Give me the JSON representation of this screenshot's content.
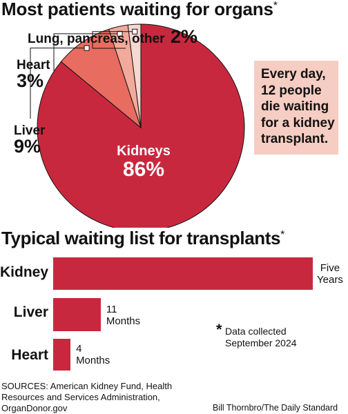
{
  "pie_chart": {
    "title": "Most patients waiting for organs",
    "title_mark": "*",
    "callout_lines": [
      "Every day,",
      "12 people",
      "die waiting",
      "for a kidney",
      "transplant."
    ]
  },
  "bar_chart": {
    "title": "Typical waiting list for transplants",
    "title_mark": "*"
  },
  "footnote": {
    "mark": "*",
    "lines": [
      "Data collected",
      "September 2024"
    ]
  },
  "sources": "SOURCES: American Kidney Fund, Health Resources and Services Administration, OrganDonor.gov",
  "credit": "Bill Thornbro/The Daily Standard",
  "chart_data": [
    {
      "type": "pie",
      "title": "Most patients waiting for organs",
      "unit": "%",
      "slices": [
        {
          "name": "Kidneys",
          "value": 86,
          "label": "86%",
          "color": "#c8283e"
        },
        {
          "name": "Liver",
          "value": 9,
          "label": "9%",
          "color": "#e86c5f"
        },
        {
          "name": "Heart",
          "value": 3,
          "label": "3%",
          "color": "#f3a99b"
        },
        {
          "name": "Lung, pancreas, other",
          "value": 2,
          "label": "2%",
          "color": "#f8d7d0"
        }
      ]
    },
    {
      "type": "bar",
      "orientation": "horizontal",
      "title": "Typical waiting list for transplants",
      "unit": "months",
      "categories": [
        "Kidney",
        "Liver",
        "Heart"
      ],
      "values": [
        60,
        11,
        4
      ],
      "value_labels": [
        [
          "Five",
          "Years"
        ],
        [
          "11",
          "Months"
        ],
        [
          "4",
          "Months"
        ]
      ],
      "color": "#c8283e"
    }
  ]
}
